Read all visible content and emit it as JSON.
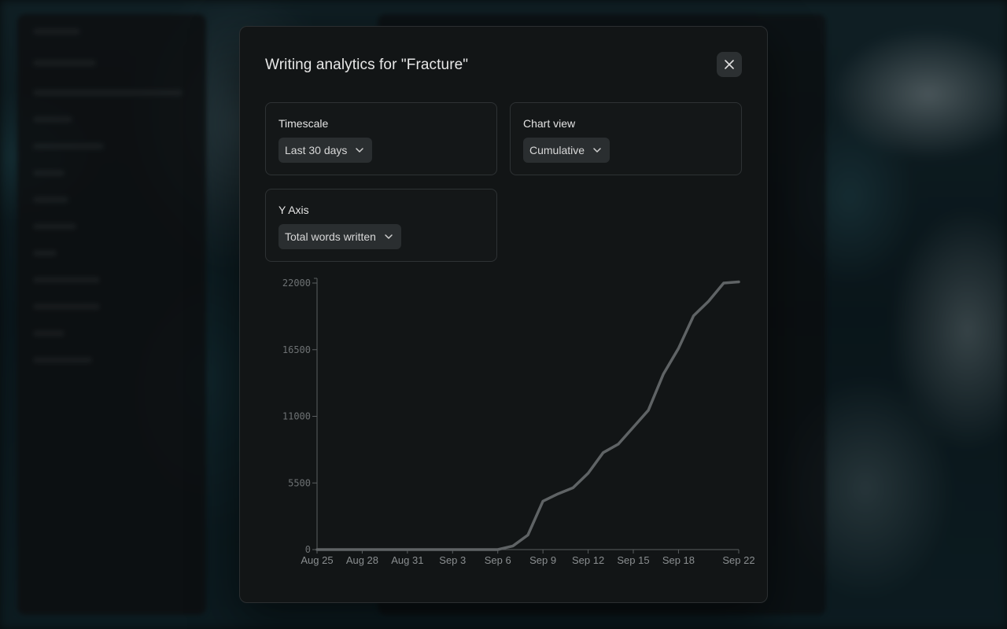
{
  "modal": {
    "title": "Writing analytics for \"Fracture\"",
    "close_icon": "close-icon"
  },
  "settings": {
    "timescale": {
      "label": "Timescale",
      "value": "Last 30 days"
    },
    "chart_view": {
      "label": "Chart view",
      "value": "Cumulative"
    },
    "y_axis": {
      "label": "Y Axis",
      "value": "Total words written"
    }
  },
  "colors": {
    "line": "#5f6365",
    "axis": "#5a5e60"
  },
  "chart_data": {
    "type": "line",
    "title": "",
    "xlabel": "",
    "ylabel": "",
    "x_ticks": [
      "Aug 25",
      "Aug 28",
      "Aug 31",
      "Sep 3",
      "Sep 6",
      "Sep 9",
      "Sep 12",
      "Sep 15",
      "Sep 18",
      "Sep 22"
    ],
    "y_ticks": [
      "0",
      "5500",
      "11000",
      "16500",
      "22000"
    ],
    "ylim": [
      0,
      22000
    ],
    "xlim": [
      "Aug 25",
      "Sep 22"
    ],
    "grid": false,
    "x": [
      "Aug 25",
      "Aug 26",
      "Aug 27",
      "Aug 28",
      "Aug 29",
      "Aug 30",
      "Aug 31",
      "Sep 1",
      "Sep 2",
      "Sep 3",
      "Sep 4",
      "Sep 5",
      "Sep 6",
      "Sep 7",
      "Sep 8",
      "Sep 9",
      "Sep 10",
      "Sep 11",
      "Sep 12",
      "Sep 13",
      "Sep 14",
      "Sep 15",
      "Sep 16",
      "Sep 17",
      "Sep 18",
      "Sep 19",
      "Sep 20",
      "Sep 21",
      "Sep 22"
    ],
    "series": [
      {
        "values": [
          0,
          0,
          0,
          0,
          0,
          0,
          0,
          0,
          0,
          0,
          0,
          0,
          0,
          300,
          1200,
          4000,
          4600,
          5100,
          6300,
          8000,
          8700,
          10100,
          11500,
          14500,
          16600,
          19300,
          20500,
          22000,
          22100
        ]
      }
    ]
  }
}
